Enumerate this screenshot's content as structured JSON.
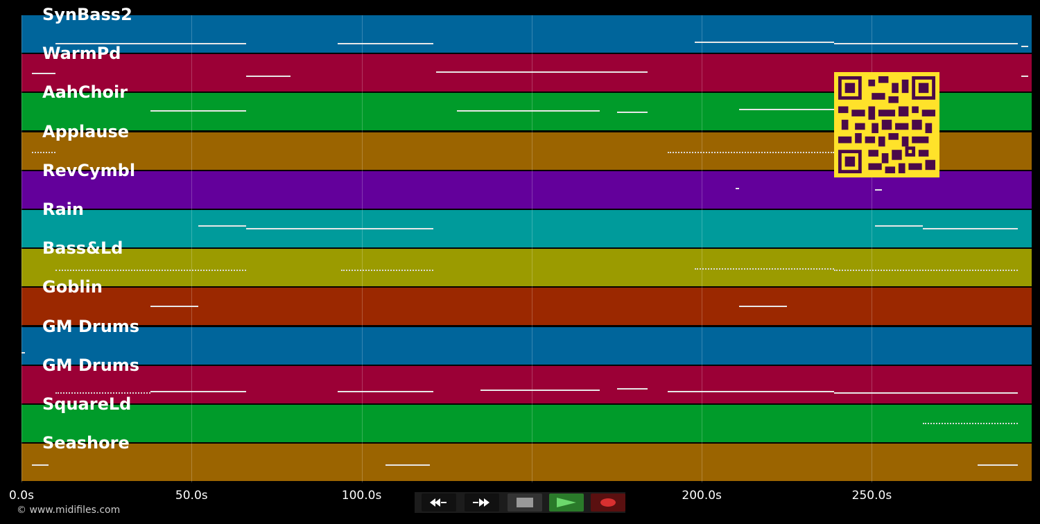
{
  "tracks": [
    {
      "name": "SynBass2",
      "color": "#00659b"
    },
    {
      "name": "WarmPd",
      "color": "#9b0036"
    },
    {
      "name": "AahChoir",
      "color": "#009b2a"
    },
    {
      "name": "Applause",
      "color": "#9b6400"
    },
    {
      "name": "RevCymbl",
      "color": "#63009b"
    },
    {
      "name": "Rain",
      "color": "#009b9b"
    },
    {
      "name": "Bass&Ld",
      "color": "#9b9b00"
    },
    {
      "name": "Goblin",
      "color": "#9b2800"
    },
    {
      "name": "GM Drums",
      "color": "#00659b"
    },
    {
      "name": "GM Drums",
      "color": "#9b0036"
    },
    {
      "name": "SquareLd",
      "color": "#009b2a"
    },
    {
      "name": "Seashore",
      "color": "#9b6400"
    }
  ],
  "timeline": {
    "max_seconds": 297,
    "ticks": [
      {
        "value": 0,
        "label": "0.0s"
      },
      {
        "value": 50,
        "label": "50.0s"
      },
      {
        "value": 100,
        "label": "100.0s"
      },
      {
        "value": 150,
        "label": ""
      },
      {
        "value": 200,
        "label": "200.0s"
      },
      {
        "value": 250,
        "label": "250.0s"
      }
    ]
  },
  "copyright": "© www.midifiles.com",
  "transport": {
    "rewind_icon": "rewind-icon",
    "fast_forward_icon": "fast-forward-icon",
    "stop_icon": "stop-icon",
    "play_icon": "play-icon",
    "record_icon": "record-icon",
    "play_color": "#6cd86c",
    "record_color": "#d83030"
  },
  "qr_icon": "qr-code-icon"
}
